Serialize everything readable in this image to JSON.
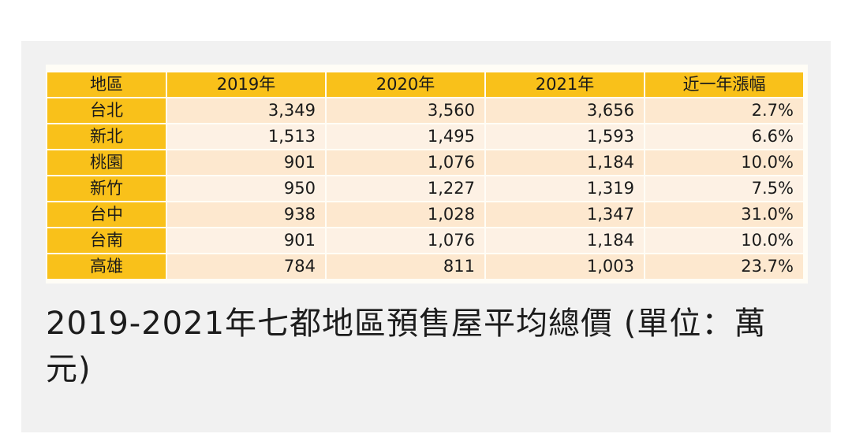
{
  "chart_data": {
    "type": "table",
    "columns": [
      "地區",
      "2019年",
      "2020年",
      "2021年",
      "近一年漲幅"
    ],
    "rows": [
      {
        "region": "台北",
        "y2019": "3,349",
        "y2020": "3,560",
        "y2021": "3,656",
        "change": "2.7%"
      },
      {
        "region": "新北",
        "y2019": "1,513",
        "y2020": "1,495",
        "y2021": "1,593",
        "change": "6.6%"
      },
      {
        "region": "桃園",
        "y2019": "901",
        "y2020": "1,076",
        "y2021": "1,184",
        "change": "10.0%"
      },
      {
        "region": "新竹",
        "y2019": "950",
        "y2020": "1,227",
        "y2021": "1,319",
        "change": "7.5%"
      },
      {
        "region": "台中",
        "y2019": "938",
        "y2020": "1,028",
        "y2021": "1,347",
        "change": "31.0%"
      },
      {
        "region": "台南",
        "y2019": "901",
        "y2020": "1,076",
        "y2021": "1,184",
        "change": "10.0%"
      },
      {
        "region": "高雄",
        "y2019": "784",
        "y2020": "811",
        "y2021": "1,003",
        "change": "23.7%"
      }
    ]
  },
  "caption": "2019-2021年七都地區預售屋平均總價 (單位：萬元)",
  "colors": {
    "header_bg": "#f9c11a",
    "row_odd_bg": "#fde8cf",
    "row_even_bg": "#fdf1e4",
    "card_bg": "#f1f1f1"
  }
}
